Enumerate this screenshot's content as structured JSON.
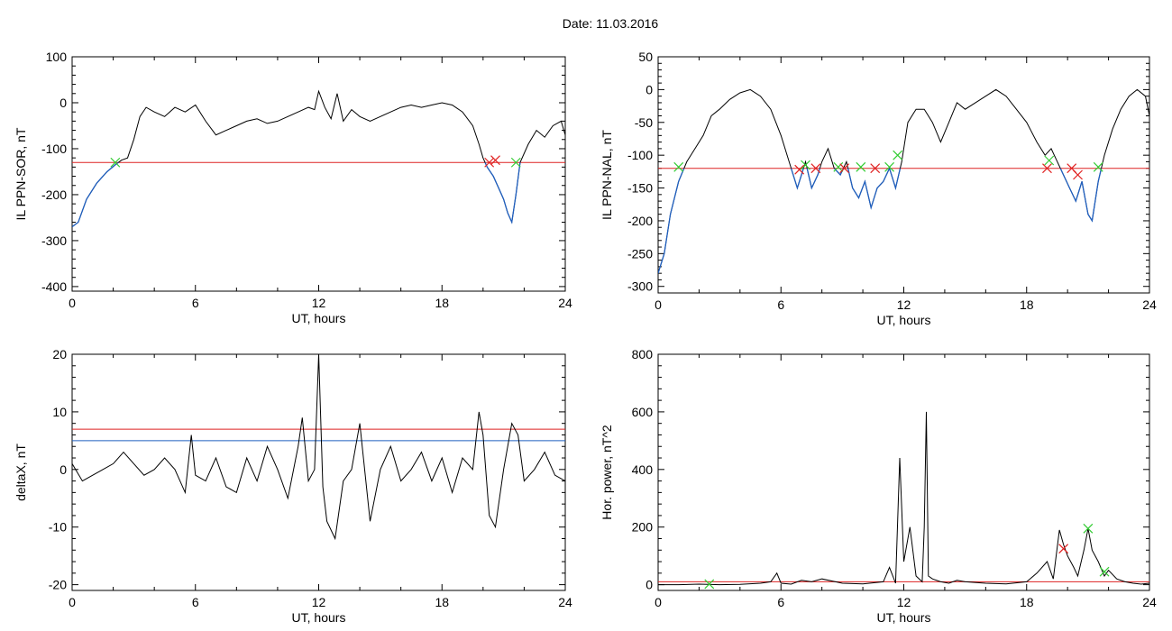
{
  "figure": {
    "date_label": "Date:",
    "date_value": "11.03.2016"
  },
  "colors": {
    "trace": "#000000",
    "threshold_red": "#dd2222",
    "threshold_blue": "#1f5fbf",
    "segment_blue": "#1f5fbf",
    "marker_red": "#e02020",
    "marker_green": "#33cc33"
  },
  "chart_data": [
    {
      "type": "line",
      "id": "sor",
      "ylabel": "IL PPN-SOR, nT",
      "xlabel": "UT, hours",
      "xlim": [
        0,
        24
      ],
      "ylim": [
        -410,
        100
      ],
      "xticks": [
        0,
        6,
        12,
        18,
        24
      ],
      "yticks": [
        -400,
        -300,
        -200,
        -100,
        0,
        100
      ],
      "thresholds": [
        {
          "value": -130,
          "color": "red"
        }
      ],
      "below_threshold_color": "blue",
      "series": [
        {
          "x": [
            0,
            0.3,
            0.7,
            1.2,
            1.7,
            2.1,
            2.4,
            2.7,
            3.0,
            3.3,
            3.6,
            4.0,
            4.5,
            5.0,
            5.5,
            6.0,
            6.5,
            7.0,
            7.5,
            8.0,
            8.5,
            9.0,
            9.5,
            10.0,
            10.5,
            11.0,
            11.5,
            11.8,
            12.0,
            12.3,
            12.6,
            12.9,
            13.2,
            13.6,
            14.0,
            14.5,
            15.0,
            15.5,
            16.0,
            16.5,
            17.0,
            17.5,
            18.0,
            18.5,
            19.0,
            19.5,
            19.8,
            20.0,
            20.2,
            20.5,
            20.8,
            21.0,
            21.2,
            21.4,
            21.6,
            21.8,
            22.2,
            22.6,
            23.0,
            23.4,
            23.8,
            24.0
          ],
          "y": [
            -270,
            -260,
            -210,
            -175,
            -150,
            -135,
            -125,
            -120,
            -80,
            -30,
            -10,
            -20,
            -30,
            -10,
            -20,
            -5,
            -40,
            -70,
            -60,
            -50,
            -40,
            -35,
            -45,
            -40,
            -30,
            -20,
            -10,
            -15,
            25,
            -10,
            -35,
            20,
            -40,
            -15,
            -30,
            -40,
            -30,
            -20,
            -10,
            -5,
            -10,
            -5,
            0,
            -5,
            -20,
            -50,
            -90,
            -120,
            -140,
            -160,
            -190,
            -210,
            -240,
            -260,
            -200,
            -130,
            -90,
            -60,
            -75,
            -50,
            -40,
            -70
          ]
        }
      ],
      "markers": [
        {
          "x": 2.1,
          "y": -130,
          "color": "green"
        },
        {
          "x": 20.3,
          "y": -130,
          "color": "red"
        },
        {
          "x": 20.6,
          "y": -125,
          "color": "red"
        },
        {
          "x": 21.6,
          "y": -130,
          "color": "green"
        }
      ]
    },
    {
      "type": "line",
      "id": "nal",
      "ylabel": "IL PPN-NAL, nT",
      "xlabel": "UT, hours",
      "xlim": [
        0,
        24
      ],
      "ylim": [
        -310,
        50
      ],
      "xticks": [
        0,
        6,
        12,
        18,
        24
      ],
      "yticks": [
        -300,
        -250,
        -200,
        -150,
        -100,
        -50,
        0,
        50
      ],
      "thresholds": [
        {
          "value": -120,
          "color": "red"
        }
      ],
      "below_threshold_color": "blue",
      "series": [
        {
          "x": [
            0,
            0.3,
            0.6,
            1.0,
            1.4,
            1.8,
            2.2,
            2.6,
            3.0,
            3.5,
            4.0,
            4.5,
            5.0,
            5.5,
            6.0,
            6.4,
            6.8,
            7.0,
            7.2,
            7.5,
            7.8,
            8.0,
            8.3,
            8.6,
            8.9,
            9.2,
            9.5,
            9.8,
            10.1,
            10.4,
            10.7,
            11.0,
            11.3,
            11.6,
            11.9,
            12.2,
            12.6,
            13.0,
            13.4,
            13.8,
            14.2,
            14.6,
            15.0,
            15.5,
            16.0,
            16.5,
            17.0,
            17.5,
            18.0,
            18.5,
            18.9,
            19.2,
            19.5,
            19.8,
            20.1,
            20.4,
            20.7,
            21.0,
            21.2,
            21.5,
            21.8,
            22.2,
            22.6,
            23.0,
            23.4,
            23.8,
            24.0
          ],
          "y": [
            -280,
            -250,
            -190,
            -140,
            -110,
            -90,
            -70,
            -40,
            -30,
            -15,
            -5,
            0,
            -10,
            -30,
            -70,
            -110,
            -150,
            -130,
            -110,
            -150,
            -130,
            -110,
            -90,
            -120,
            -130,
            -110,
            -150,
            -165,
            -140,
            -180,
            -150,
            -140,
            -120,
            -150,
            -110,
            -50,
            -30,
            -30,
            -50,
            -80,
            -50,
            -20,
            -30,
            -20,
            -10,
            0,
            -10,
            -30,
            -50,
            -80,
            -100,
            -90,
            -110,
            -130,
            -150,
            -170,
            -140,
            -190,
            -200,
            -140,
            -100,
            -60,
            -30,
            -10,
            0,
            -10,
            -40
          ]
        }
      ],
      "markers": [
        {
          "x": 1.0,
          "y": -118,
          "color": "green"
        },
        {
          "x": 6.9,
          "y": -122,
          "color": "red"
        },
        {
          "x": 7.2,
          "y": -115,
          "color": "green"
        },
        {
          "x": 7.7,
          "y": -120,
          "color": "red"
        },
        {
          "x": 8.8,
          "y": -118,
          "color": "green"
        },
        {
          "x": 9.1,
          "y": -120,
          "color": "red"
        },
        {
          "x": 9.9,
          "y": -118,
          "color": "green"
        },
        {
          "x": 10.6,
          "y": -120,
          "color": "red"
        },
        {
          "x": 11.3,
          "y": -118,
          "color": "green"
        },
        {
          "x": 11.7,
          "y": -100,
          "color": "green"
        },
        {
          "x": 19.0,
          "y": -120,
          "color": "red"
        },
        {
          "x": 19.1,
          "y": -108,
          "color": "green"
        },
        {
          "x": 20.2,
          "y": -120,
          "color": "red"
        },
        {
          "x": 20.5,
          "y": -130,
          "color": "red"
        },
        {
          "x": 21.5,
          "y": -118,
          "color": "green"
        }
      ]
    },
    {
      "type": "line",
      "id": "deltax",
      "ylabel": "deltaX, nT",
      "xlabel": "UT, hours",
      "xlim": [
        0,
        24
      ],
      "ylim": [
        -21,
        20
      ],
      "xticks": [
        0,
        6,
        12,
        18,
        24
      ],
      "yticks": [
        -20,
        -10,
        0,
        10,
        20
      ],
      "thresholds": [
        {
          "value": 7,
          "color": "red"
        },
        {
          "value": 5,
          "color": "blue"
        }
      ],
      "series": [
        {
          "x": [
            0,
            0.5,
            1.0,
            1.5,
            2.0,
            2.5,
            3.0,
            3.5,
            4.0,
            4.5,
            5.0,
            5.5,
            5.8,
            6.0,
            6.5,
            7.0,
            7.5,
            8.0,
            8.5,
            9.0,
            9.5,
            10.0,
            10.5,
            11.0,
            11.2,
            11.5,
            11.8,
            12.0,
            12.2,
            12.4,
            12.8,
            13.2,
            13.6,
            14.0,
            14.5,
            15.0,
            15.5,
            16.0,
            16.5,
            17.0,
            17.5,
            18.0,
            18.5,
            19.0,
            19.5,
            19.8,
            20.0,
            20.3,
            20.6,
            21.0,
            21.4,
            21.7,
            22.0,
            22.5,
            23.0,
            23.5,
            24.0
          ],
          "y": [
            1,
            -2,
            -1,
            0,
            1,
            3,
            1,
            -1,
            0,
            2,
            0,
            -4,
            6,
            -1,
            -2,
            2,
            -3,
            -4,
            2,
            -2,
            4,
            0,
            -5,
            4,
            9,
            -2,
            0,
            20,
            -3,
            -9,
            -12,
            -2,
            0,
            8,
            -9,
            0,
            4,
            -2,
            0,
            3,
            -2,
            2,
            -4,
            2,
            0,
            10,
            6,
            -8,
            -10,
            0,
            8,
            6,
            -2,
            0,
            3,
            -1,
            -2
          ]
        }
      ],
      "markers": []
    },
    {
      "type": "line",
      "id": "power",
      "ylabel": "Hor. power, nT^2",
      "xlabel": "UT, hours",
      "xlim": [
        0,
        24
      ],
      "ylim": [
        -20,
        800
      ],
      "xticks": [
        0,
        6,
        12,
        18,
        24
      ],
      "yticks": [
        0,
        200,
        400,
        600,
        800
      ],
      "thresholds": [
        {
          "value": 10,
          "color": "red"
        }
      ],
      "series": [
        {
          "x": [
            0,
            1,
            2,
            3,
            4,
            5,
            5.5,
            5.8,
            6.0,
            6.5,
            7.0,
            7.5,
            8.0,
            9.0,
            10.0,
            11.0,
            11.3,
            11.6,
            11.8,
            12.0,
            12.3,
            12.6,
            12.9,
            13.0,
            13.1,
            13.2,
            13.4,
            13.8,
            14.2,
            14.6,
            15.0,
            16.0,
            17.0,
            18.0,
            18.5,
            19.0,
            19.3,
            19.6,
            19.8,
            20.0,
            20.3,
            20.5,
            20.8,
            21.0,
            21.2,
            21.5,
            21.8,
            22.0,
            22.4,
            22.8,
            23.2,
            23.6,
            24.0
          ],
          "y": [
            0,
            0,
            2,
            0,
            1,
            5,
            10,
            40,
            5,
            2,
            15,
            10,
            20,
            5,
            3,
            10,
            60,
            5,
            440,
            80,
            200,
            30,
            10,
            200,
            600,
            30,
            20,
            10,
            5,
            15,
            10,
            5,
            3,
            10,
            40,
            80,
            20,
            190,
            140,
            100,
            60,
            30,
            120,
            195,
            120,
            80,
            30,
            50,
            20,
            10,
            5,
            2,
            5
          ]
        }
      ],
      "markers": [
        {
          "x": 2.5,
          "y": 2,
          "color": "green"
        },
        {
          "x": 19.8,
          "y": 125,
          "color": "red"
        },
        {
          "x": 21.0,
          "y": 195,
          "color": "green"
        },
        {
          "x": 21.8,
          "y": 45,
          "color": "green"
        }
      ]
    }
  ]
}
